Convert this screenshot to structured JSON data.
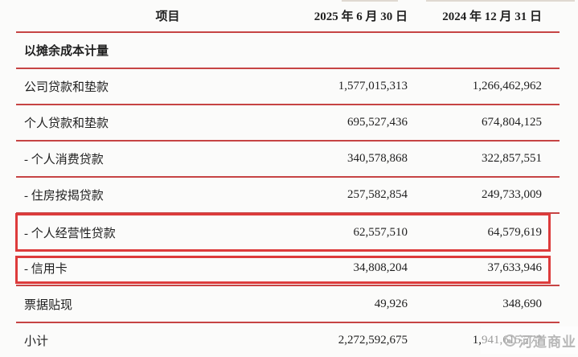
{
  "header": {
    "col_item": "项目",
    "col_2025": "2025 年 6 月 30 日",
    "col_2024": "2024 年 12 月 31 日"
  },
  "section_title": "以摊余成本计量",
  "rows": [
    {
      "label": "公司贷款和垫款",
      "v2025": "1,577,015,313",
      "v2024": "1,266,462,962",
      "highlighted": false
    },
    {
      "label": "个人贷款和垫款",
      "v2025": "695,527,436",
      "v2024": "674,804,125",
      "highlighted": false
    },
    {
      "label": "- 个人消费贷款",
      "v2025": "340,578,868",
      "v2024": "322,857,551",
      "highlighted": false
    },
    {
      "label": "- 住房按揭贷款",
      "v2025": "257,582,854",
      "v2024": "249,733,009",
      "highlighted": false
    },
    {
      "label": "- 个人经营性贷款",
      "v2025": "62,557,510",
      "v2024": "64,579,619",
      "highlighted": true
    },
    {
      "label": "- 信用卡",
      "v2025": "34,808,204",
      "v2024": "37,633,946",
      "highlighted": true
    },
    {
      "label": "票据贴现",
      "v2025": "49,926",
      "v2024": "348,690",
      "highlighted": false
    },
    {
      "label": "小计",
      "v2025": "2,272,592,675",
      "v2024": "1,941,615,777",
      "highlighted": false
    }
  ],
  "watermark": {
    "text": "河道商业"
  },
  "colors": {
    "separator_line": "#c64444",
    "highlight_box": "#dd3b3b",
    "text": "#1f1f1f",
    "background": "#fbfbfa",
    "watermark": "#afafaf"
  }
}
